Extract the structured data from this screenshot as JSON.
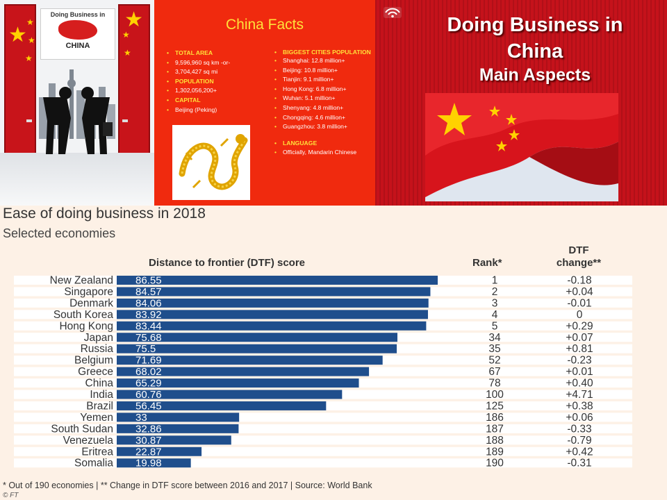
{
  "door_panel": {
    "logo_line1": "Doing Business in",
    "logo_line2": "CHINA"
  },
  "facts": {
    "title": "China Facts",
    "col1": [
      {
        "text": "TOTAL AREA",
        "header": true
      },
      {
        "text": "9,596,960 sq km -or-",
        "header": false
      },
      {
        "text": "3,704,427 sq mi",
        "header": false
      },
      {
        "text": "POPULATION",
        "header": true
      },
      {
        "text": "1,302,056,200+",
        "header": false
      },
      {
        "text": "CAPITAL",
        "header": true
      },
      {
        "text": "Beijing (Peking)",
        "header": false
      }
    ],
    "col2": [
      {
        "text": "BIGGEST CITIES POPULATION",
        "header": true
      },
      {
        "text": "Shanghai: 12.8 million+",
        "header": false
      },
      {
        "text": "Beijing: 10.8 million+",
        "header": false
      },
      {
        "text": "Tianjin: 9.1 million+",
        "header": false
      },
      {
        "text": "Hong Kong: 6.8 million+",
        "header": false
      },
      {
        "text": "Wuhan: 5.1 million+",
        "header": false
      },
      {
        "text": "Shenyang: 4.8 million+",
        "header": false
      },
      {
        "text": "Chongqing: 4.6 million+",
        "header": false
      },
      {
        "text": "Guangzhou: 3.8 million+",
        "header": false
      },
      {
        "text": "",
        "header": false,
        "gap": true
      },
      {
        "text": "LANGUAGE",
        "header": true
      },
      {
        "text": "Officially, Mandarin Chinese",
        "header": false
      }
    ]
  },
  "title_slide": {
    "line1": "Doing Business in",
    "line2": "China",
    "line3": "Main Aspects"
  },
  "colors": {
    "bar": "#1f4e8c",
    "facts_bg": "#f02a0e",
    "title_bg": "#c5121b",
    "chart_bg": "#fdf1e6",
    "row_band": "#ffffff"
  },
  "chart_data": {
    "type": "bar",
    "title": "Ease of doing business in 2018",
    "subtitle": "Selected economies",
    "value_header": "Distance to frontier (DTF) score",
    "rank_header": "Rank*",
    "change_header_line1": "DTF",
    "change_header_line2": "change**",
    "xlim": [
      0,
      100
    ],
    "categories": [
      "New Zealand",
      "Singapore",
      "Denmark",
      "South Korea",
      "Hong Kong",
      "Japan",
      "Russia",
      "Belgium",
      "Greece",
      "China",
      "India",
      "Brazil",
      "Yemen",
      "South Sudan",
      "Venezuela",
      "Eritrea",
      "Somalia"
    ],
    "values": [
      86.55,
      84.57,
      84.06,
      83.92,
      83.44,
      75.68,
      75.5,
      71.69,
      68.02,
      65.29,
      60.76,
      56.45,
      33,
      32.86,
      30.87,
      22.87,
      19.98
    ],
    "value_labels": [
      "86.55",
      "84.57",
      "84.06",
      "83.92",
      "83.44",
      "75.68",
      "75.5",
      "71.69",
      "68.02",
      "65.29",
      "60.76",
      "56.45",
      "33",
      "32.86",
      "30.87",
      "22.87",
      "19.98"
    ],
    "ranks": [
      "1",
      "2",
      "3",
      "4",
      "5",
      "34",
      "35",
      "52",
      "67",
      "78",
      "100",
      "125",
      "186",
      "187",
      "188",
      "189",
      "190"
    ],
    "changes": [
      "-0.18",
      "+0.04",
      "-0.01",
      "0",
      "+0.29",
      "+0.07",
      "+0.81",
      "-0.23",
      "+0.01",
      "+0.40",
      "+4.71",
      "+0.38",
      "+0.06",
      "-0.33",
      "-0.79",
      "+0.42",
      "-0.31"
    ]
  },
  "footnote": "* Out of 190 economies | ** Change in DTF score between 2016 and 2017 | Source: World Bank",
  "credit": "© FT"
}
